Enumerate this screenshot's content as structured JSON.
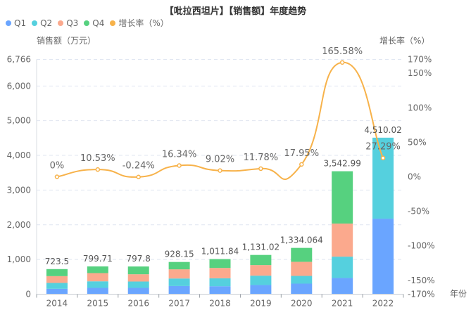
{
  "chart_data": {
    "type": "bar",
    "title": "【吡拉西坦片】【销售额】年度趋势",
    "xlabel": "年份",
    "ylabel": "销售额（万元）",
    "y2label": "增长率（%）",
    "categories": [
      "2014",
      "2015",
      "2016",
      "2017",
      "2018",
      "2019",
      "2020",
      "2021",
      "2022"
    ],
    "ylim": [
      0,
      6766
    ],
    "y_ticks": [
      "0",
      "1,000",
      "2,000",
      "3,000",
      "4,000",
      "5,000",
      "6,000",
      "6,766"
    ],
    "y_tick_values": [
      0,
      1000,
      2000,
      3000,
      4000,
      5000,
      6000,
      6766
    ],
    "y2lim": [
      -170,
      170
    ],
    "y2_ticks": [
      "-170%",
      "-150%",
      "-100%",
      "-50%",
      "0%",
      "50%",
      "100%",
      "150%",
      "170%"
    ],
    "y2_tick_values": [
      -170,
      -150,
      -100,
      -50,
      0,
      50,
      100,
      150,
      170
    ],
    "grid": true,
    "legend_position": "top-left",
    "series": [
      {
        "name": "Q1",
        "type": "bar",
        "stack": "total",
        "color": "#6aa5ff",
        "values": [
          155,
          182,
          182,
          235,
          229,
          264,
          304,
          467,
          2176
        ]
      },
      {
        "name": "Q2",
        "type": "bar",
        "stack": "total",
        "color": "#55d0de",
        "values": [
          170,
          189,
          183,
          217,
          229,
          270,
          223,
          615,
          2334.02
        ]
      },
      {
        "name": "Q3",
        "type": "bar",
        "stack": "total",
        "color": "#fba98d",
        "values": [
          195,
          237,
          209,
          264,
          298,
          304,
          406,
          953,
          0
        ]
      },
      {
        "name": "Q4",
        "type": "bar",
        "stack": "total",
        "color": "#56d17f",
        "values": [
          203.5,
          191.71,
          223.8,
          212.15,
          255.84,
          293.02,
          401.064,
          1507.99,
          0
        ]
      },
      {
        "name": "增长率（%）",
        "type": "line",
        "axis": "right",
        "color": "#f7b24a",
        "values": [
          0,
          10.53,
          -0.24,
          16.34,
          9.02,
          11.78,
          17.95,
          165.58,
          27.29
        ],
        "labels": [
          "0%",
          "10.53%",
          "-0.24%",
          "16.34%",
          "9.02%",
          "11.78%",
          "17.95%",
          "165.58%",
          "27.29%"
        ]
      }
    ],
    "totals": [
      723.5,
      799.71,
      797.8,
      928.15,
      1011.84,
      1131.02,
      1334.064,
      3542.99,
      4510.02
    ],
    "total_labels": [
      "723.5",
      "799.71",
      "797.8",
      "928.15",
      "1,011.84",
      "1,131.02",
      "1,334.064",
      "3,542.99",
      "4,510.02"
    ]
  },
  "legend": [
    {
      "label": "Q1",
      "color": "#6aa5ff"
    },
    {
      "label": "Q2",
      "color": "#55d0de"
    },
    {
      "label": "Q3",
      "color": "#fba98d"
    },
    {
      "label": "Q4",
      "color": "#56d17f"
    },
    {
      "label": "增长率（%）",
      "color": "#f7b24a"
    }
  ]
}
